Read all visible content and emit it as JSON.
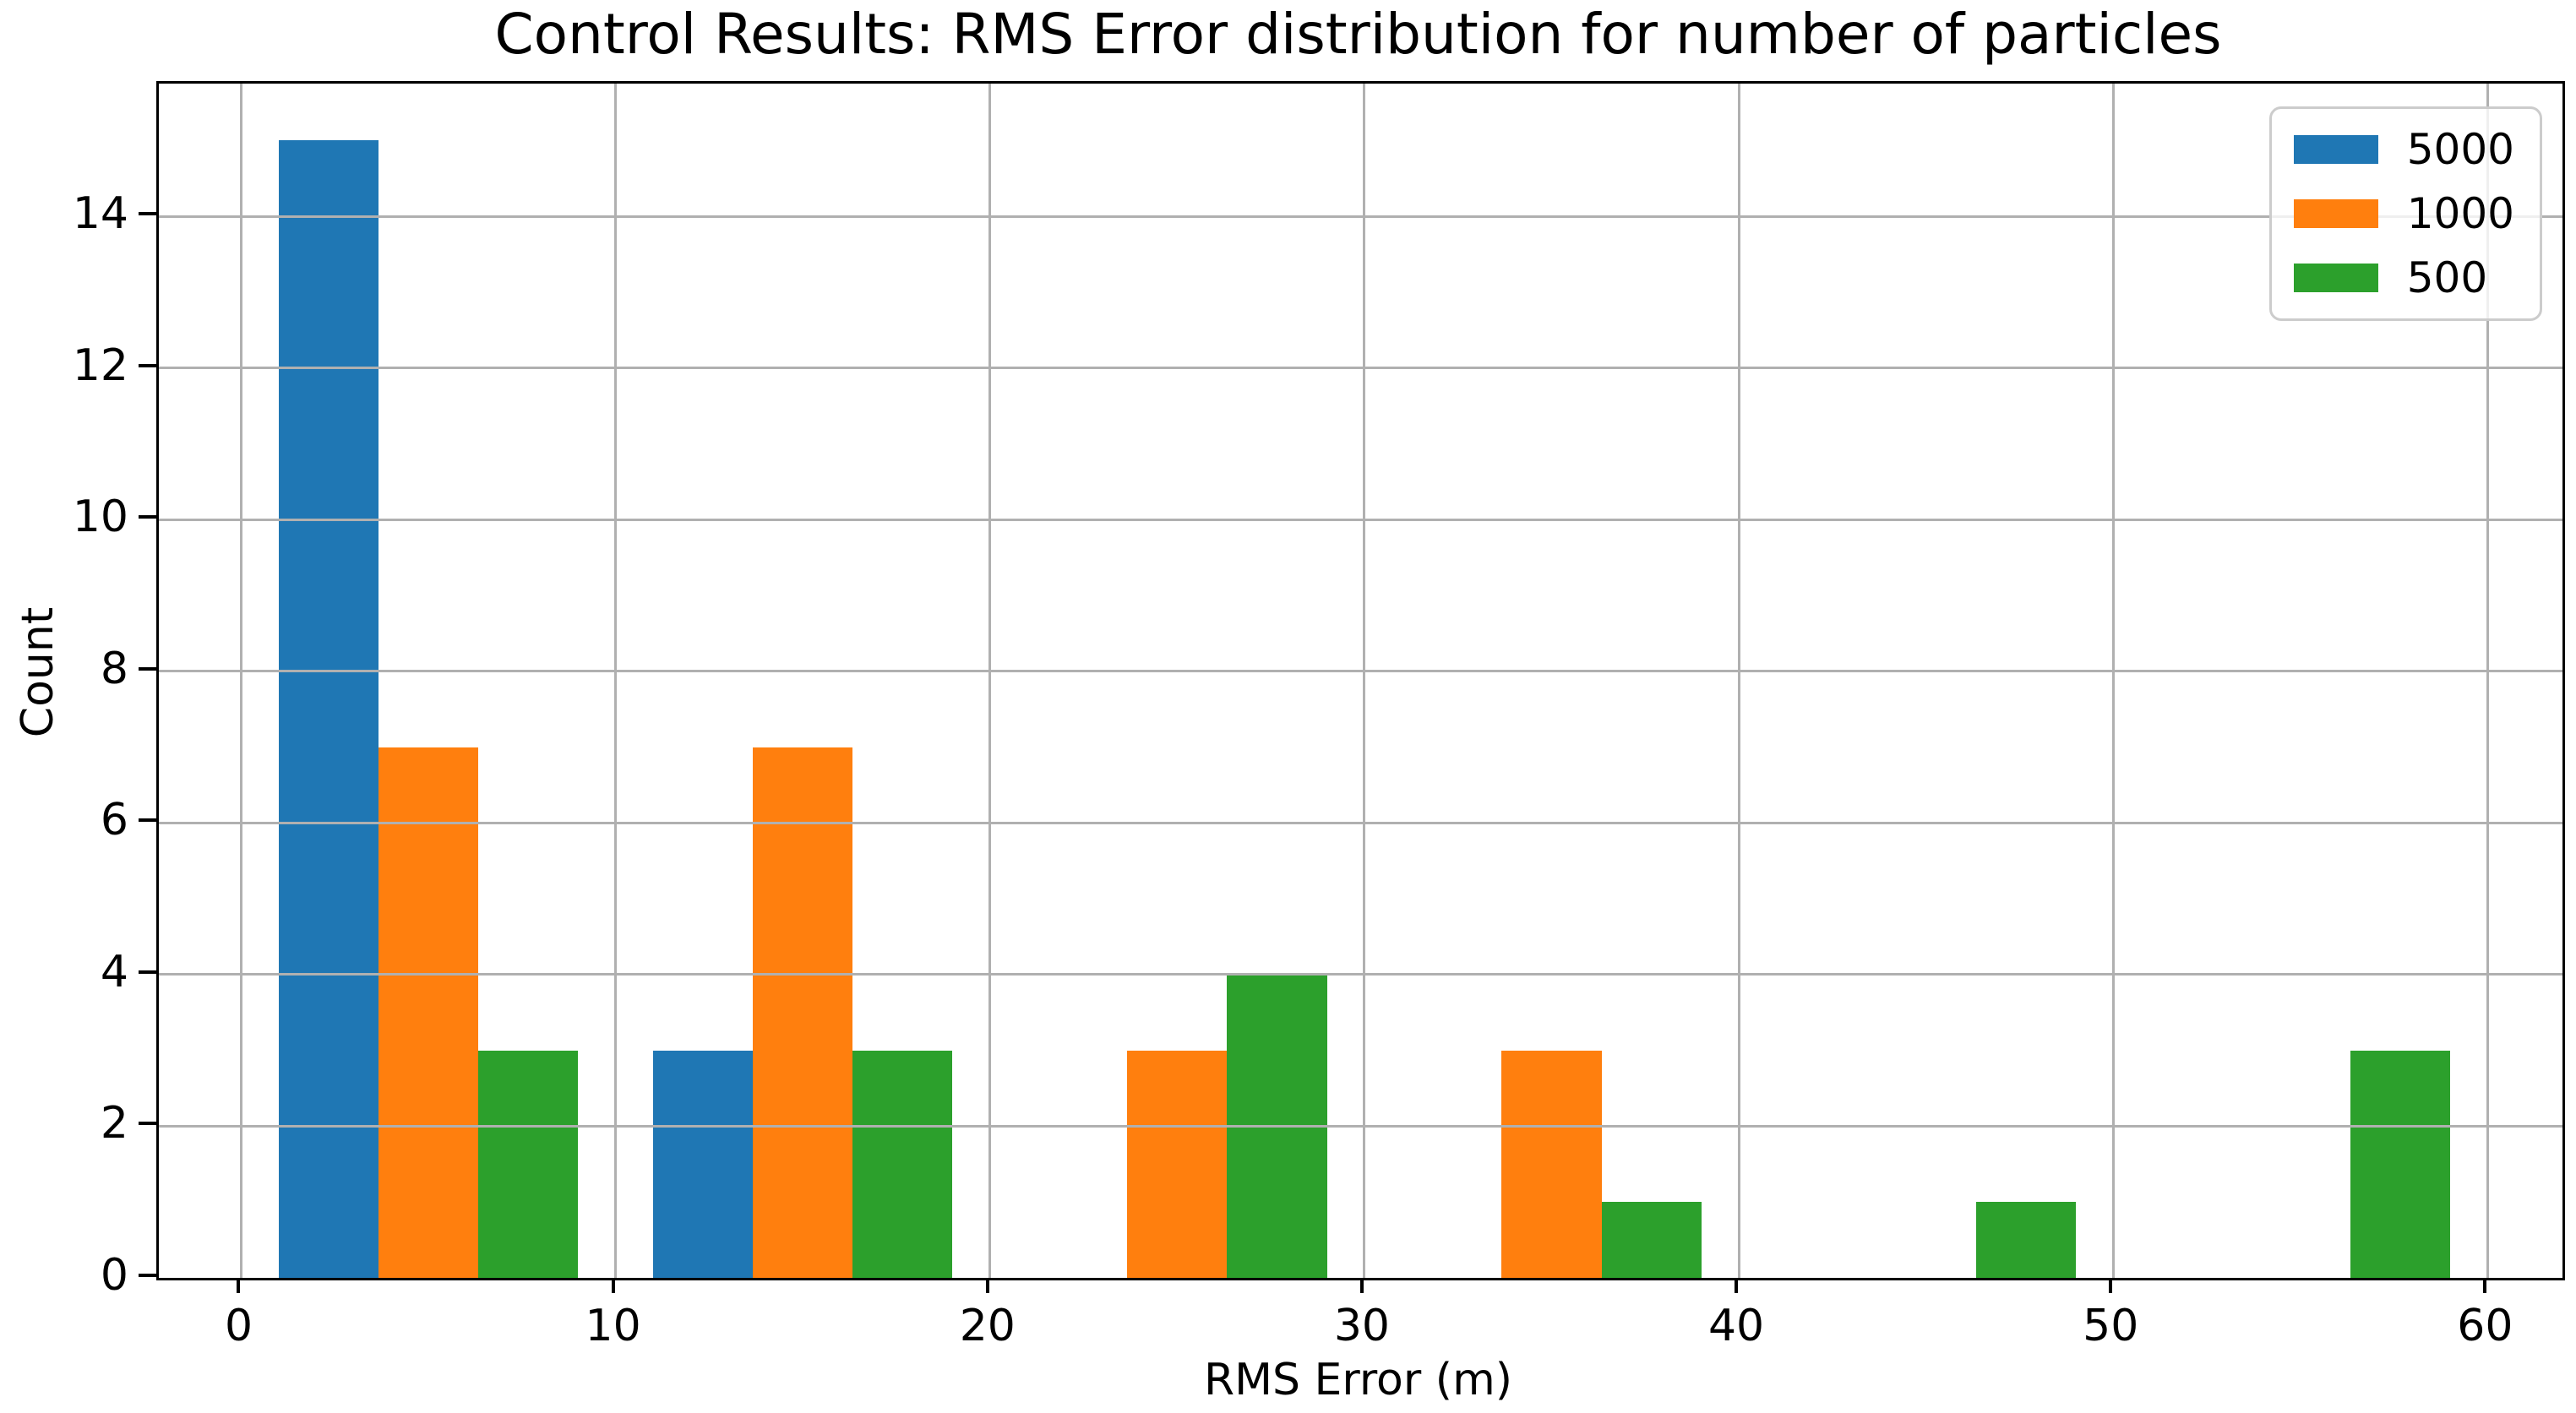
{
  "chart_data": {
    "type": "bar",
    "title": "Control Results: RMS Error distribution for number of particles",
    "xlabel": "RMS Error (m)",
    "ylabel": "Count",
    "xlim": [
      -2.2,
      62.0
    ],
    "ylim": [
      0,
      15.75
    ],
    "xticks": [
      0,
      10,
      20,
      30,
      40,
      50,
      60
    ],
    "yticks": [
      0,
      2,
      4,
      6,
      8,
      10,
      12,
      14
    ],
    "grid": true,
    "grid_color": "#b0b0b0",
    "legend_position": "upper right",
    "bin_edges": [
      0,
      10,
      20,
      30,
      40,
      50,
      60
    ],
    "bar_width": 2.6667,
    "group_fill_ratio": 0.8,
    "series": [
      {
        "name": "5000",
        "color": "#1f77b4",
        "values": [
          15,
          3,
          0,
          0,
          0,
          0
        ]
      },
      {
        "name": "1000",
        "color": "#ff7f0e",
        "values": [
          7,
          7,
          3,
          3,
          0,
          0
        ]
      },
      {
        "name": "500",
        "color": "#2ca02c",
        "values": [
          3,
          3,
          4,
          1,
          1,
          3
        ]
      }
    ]
  }
}
